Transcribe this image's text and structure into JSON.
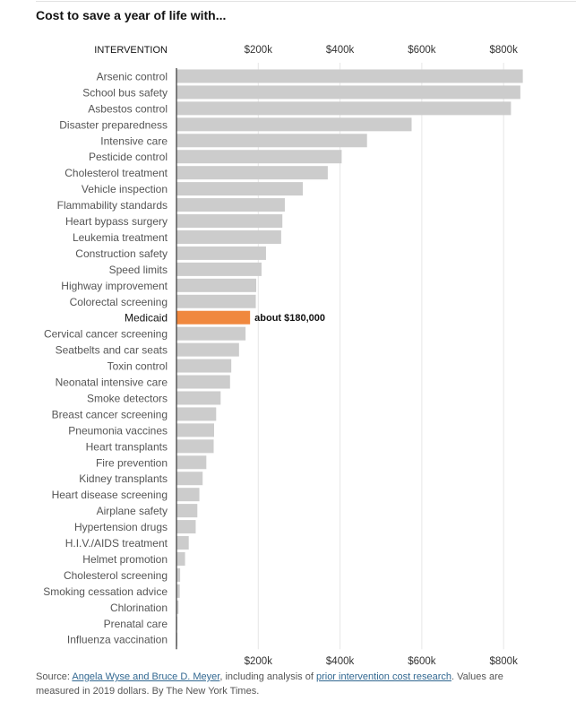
{
  "page": {
    "title": "Cost to save a year of life with...",
    "source": {
      "prefix": "Source: ",
      "link1": "Angela Wyse and Bruce D. Meyer",
      "middle": ", including analysis of ",
      "link2": "prior intervention cost research",
      "suffix": ". Values are measured in 2019 dollars. By The New York Times."
    }
  },
  "chart_data": {
    "type": "bar",
    "orientation": "horizontal",
    "title": "Cost to save a year of life with...",
    "category_header": "INTERVENTION",
    "xlim": [
      0,
      850000
    ],
    "ticks": [
      200000,
      400000,
      600000,
      800000
    ],
    "tick_labels": [
      "$200k",
      "$400k",
      "$600k",
      "$800k"
    ],
    "highlight": "Medicaid",
    "highlight_label": "about $180,000",
    "colors": {
      "bar": "#cccccc",
      "highlight": "#f0883e",
      "axis": "#333333",
      "grid": "#e6e6e6"
    },
    "categories": [
      "Arsenic control",
      "School bus safety",
      "Asbestos control",
      "Disaster preparedness",
      "Intensive care",
      "Pesticide control",
      "Cholesterol treatment",
      "Vehicle inspection",
      "Flammability standards",
      "Heart bypass surgery",
      "Leukemia treatment",
      "Construction safety",
      "Speed limits",
      "Highway improvement",
      "Colorectal screening",
      "Medicaid",
      "Cervical cancer screening",
      "Seatbelts and car seats",
      "Toxin control",
      "Neonatal intensive care",
      "Smoke detectors",
      "Breast cancer screening",
      "Pneumonia vaccines",
      "Heart transplants",
      "Fire prevention",
      "Kidney transplants",
      "Heart disease screening",
      "Airplane safety",
      "Hypertension drugs",
      "H.I.V./AIDS treatment",
      "Helmet promotion",
      "Cholesterol screening",
      "Smoking cessation advice",
      "Chlorination",
      "Prenatal care",
      "Influenza vaccination"
    ],
    "values": [
      847000,
      841000,
      818000,
      575000,
      466000,
      404000,
      370000,
      309000,
      265000,
      259000,
      256000,
      219000,
      208000,
      195000,
      194000,
      180000,
      169000,
      153000,
      134000,
      131000,
      108000,
      97000,
      92000,
      91000,
      73000,
      64000,
      56000,
      51000,
      47000,
      30000,
      21000,
      9000,
      8000,
      5000,
      1000,
      1000
    ]
  }
}
